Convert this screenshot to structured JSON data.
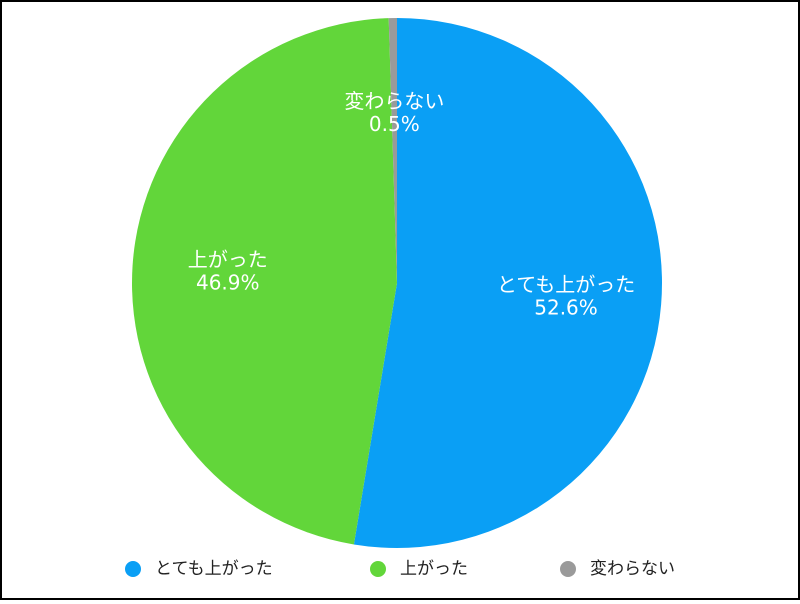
{
  "chart_data": {
    "type": "pie",
    "categories": [
      "とても上がった",
      "上がった",
      "変わらない"
    ],
    "values": [
      52.6,
      46.9,
      0.5
    ],
    "value_labels": [
      "52.6%",
      "46.9%",
      "0.5%"
    ],
    "colors": [
      "#0a9ff5",
      "#62d63a",
      "#9a9a9a"
    ],
    "legend": "bottom"
  }
}
